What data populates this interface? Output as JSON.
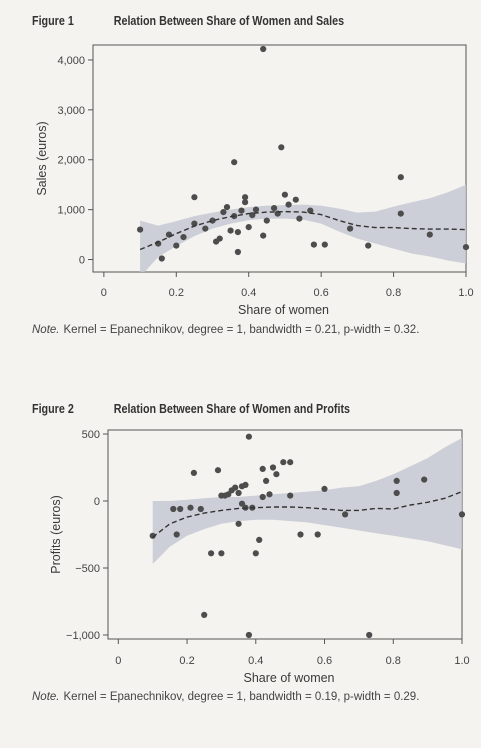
{
  "figures": [
    {
      "label": "Figure 1",
      "title": "Relation Between Share of Women and Sales",
      "note_lead": "Note.",
      "note_text": "Kernel = Epanechnikov, degree = 1, bandwidth = 0.21, p-width = 0.32."
    },
    {
      "label": "Figure 2",
      "title": "Relation Between Share of Women and Profits",
      "note_lead": "Note.",
      "note_text": "Kernel = Epanechnikov, degree = 1, bandwidth = 0.19, p-width = 0.29."
    }
  ],
  "chart_data": [
    {
      "type": "scatter",
      "xlabel": "Share of women",
      "ylabel": "Sales (euros)",
      "xlim": [
        -0.03,
        1.0
      ],
      "ylim": [
        -250,
        4300
      ],
      "xticks": [
        0,
        0.2,
        0.4,
        0.6,
        0.8,
        1.0
      ],
      "xtick_labels": [
        "0",
        "0.2",
        "0.4",
        "0.6",
        "0.8",
        "1.0"
      ],
      "yticks": [
        0,
        1000,
        2000,
        3000,
        4000
      ],
      "ytick_labels": [
        "0",
        "1,000",
        "2,000",
        "3,000",
        "4,000"
      ],
      "grid": false,
      "colors": {
        "points": "#4d4d4d",
        "band": "#c4c8d2",
        "fit": "#333333"
      },
      "points": [
        [
          0.1,
          600
        ],
        [
          0.15,
          320
        ],
        [
          0.16,
          20
        ],
        [
          0.18,
          500
        ],
        [
          0.2,
          280
        ],
        [
          0.22,
          450
        ],
        [
          0.25,
          1250
        ],
        [
          0.25,
          720
        ],
        [
          0.28,
          620
        ],
        [
          0.3,
          780
        ],
        [
          0.31,
          360
        ],
        [
          0.32,
          420
        ],
        [
          0.33,
          950
        ],
        [
          0.34,
          1050
        ],
        [
          0.35,
          580
        ],
        [
          0.36,
          1950
        ],
        [
          0.36,
          870
        ],
        [
          0.37,
          550
        ],
        [
          0.37,
          150
        ],
        [
          0.38,
          980
        ],
        [
          0.39,
          1250
        ],
        [
          0.39,
          1150
        ],
        [
          0.4,
          650
        ],
        [
          0.41,
          890
        ],
        [
          0.42,
          1000
        ],
        [
          0.44,
          4220
        ],
        [
          0.44,
          480
        ],
        [
          0.45,
          780
        ],
        [
          0.47,
          1030
        ],
        [
          0.48,
          920
        ],
        [
          0.49,
          2250
        ],
        [
          0.5,
          1300
        ],
        [
          0.51,
          1100
        ],
        [
          0.53,
          1200
        ],
        [
          0.54,
          820
        ],
        [
          0.57,
          980
        ],
        [
          0.58,
          300
        ],
        [
          0.61,
          300
        ],
        [
          0.68,
          620
        ],
        [
          0.73,
          280
        ],
        [
          0.82,
          1650
        ],
        [
          0.82,
          920
        ],
        [
          0.9,
          500
        ],
        [
          1.0,
          250
        ]
      ],
      "fit_line": [
        [
          0.1,
          200
        ],
        [
          0.15,
          350
        ],
        [
          0.2,
          520
        ],
        [
          0.25,
          670
        ],
        [
          0.3,
          780
        ],
        [
          0.35,
          860
        ],
        [
          0.4,
          920
        ],
        [
          0.45,
          950
        ],
        [
          0.5,
          960
        ],
        [
          0.55,
          950
        ],
        [
          0.6,
          900
        ],
        [
          0.65,
          780
        ],
        [
          0.7,
          680
        ],
        [
          0.75,
          640
        ],
        [
          0.8,
          640
        ],
        [
          0.85,
          620
        ],
        [
          0.9,
          610
        ],
        [
          0.95,
          610
        ],
        [
          1.0,
          600
        ]
      ],
      "ci_band": [
        [
          0.1,
          -350,
          780
        ],
        [
          0.15,
          50,
          680
        ],
        [
          0.2,
          270,
          770
        ],
        [
          0.25,
          470,
          870
        ],
        [
          0.3,
          620,
          940
        ],
        [
          0.35,
          720,
          1000
        ],
        [
          0.4,
          790,
          1050
        ],
        [
          0.45,
          820,
          1080
        ],
        [
          0.5,
          820,
          1090
        ],
        [
          0.55,
          800,
          1100
        ],
        [
          0.6,
          720,
          1080
        ],
        [
          0.65,
          560,
          1020
        ],
        [
          0.7,
          420,
          940
        ],
        [
          0.75,
          320,
          960
        ],
        [
          0.8,
          220,
          1060
        ],
        [
          0.85,
          120,
          1150
        ],
        [
          0.9,
          60,
          1230
        ],
        [
          0.95,
          -20,
          1350
        ],
        [
          1.0,
          -80,
          1500
        ]
      ]
    },
    {
      "type": "scatter",
      "xlabel": "Share of women",
      "ylabel": "Profits (euros)",
      "xlim": [
        -0.03,
        1.0
      ],
      "ylim": [
        -1030,
        530
      ],
      "xticks": [
        0,
        0.2,
        0.4,
        0.6,
        0.8,
        1.0
      ],
      "xtick_labels": [
        "0",
        "0.2",
        "0.4",
        "0.6",
        "0.8",
        "1.0"
      ],
      "yticks": [
        -1000,
        -500,
        0,
        500
      ],
      "ytick_labels": [
        "−1,000",
        "−500",
        "0",
        "500"
      ],
      "grid": false,
      "colors": {
        "points": "#4d4d4d",
        "band": "#c4c8d2",
        "fit": "#333333"
      },
      "points": [
        [
          0.1,
          -260
        ],
        [
          0.16,
          -60
        ],
        [
          0.17,
          -250
        ],
        [
          0.18,
          -60
        ],
        [
          0.21,
          -50
        ],
        [
          0.22,
          210
        ],
        [
          0.24,
          -60
        ],
        [
          0.25,
          -850
        ],
        [
          0.27,
          -390
        ],
        [
          0.29,
          230
        ],
        [
          0.3,
          40
        ],
        [
          0.3,
          -390
        ],
        [
          0.31,
          40
        ],
        [
          0.32,
          50
        ],
        [
          0.33,
          80
        ],
        [
          0.34,
          100
        ],
        [
          0.35,
          -170
        ],
        [
          0.35,
          60
        ],
        [
          0.36,
          -20
        ],
        [
          0.36,
          110
        ],
        [
          0.37,
          120
        ],
        [
          0.37,
          -50
        ],
        [
          0.38,
          480
        ],
        [
          0.38,
          -1000
        ],
        [
          0.39,
          -50
        ],
        [
          0.4,
          -390
        ],
        [
          0.41,
          -290
        ],
        [
          0.42,
          30
        ],
        [
          0.42,
          240
        ],
        [
          0.43,
          150
        ],
        [
          0.44,
          50
        ],
        [
          0.45,
          250
        ],
        [
          0.46,
          200
        ],
        [
          0.48,
          290
        ],
        [
          0.5,
          40
        ],
        [
          0.5,
          290
        ],
        [
          0.53,
          -250
        ],
        [
          0.58,
          -250
        ],
        [
          0.6,
          90
        ],
        [
          0.66,
          -100
        ],
        [
          0.73,
          -1000
        ],
        [
          0.81,
          150
        ],
        [
          0.81,
          60
        ],
        [
          0.89,
          160
        ],
        [
          1.0,
          -100
        ]
      ],
      "fit_line": [
        [
          0.1,
          -270
        ],
        [
          0.15,
          -170
        ],
        [
          0.2,
          -120
        ],
        [
          0.25,
          -90
        ],
        [
          0.3,
          -70
        ],
        [
          0.35,
          -55
        ],
        [
          0.4,
          -50
        ],
        [
          0.45,
          -45
        ],
        [
          0.5,
          -45
        ],
        [
          0.55,
          -50
        ],
        [
          0.6,
          -60
        ],
        [
          0.65,
          -70
        ],
        [
          0.7,
          -70
        ],
        [
          0.75,
          -55
        ],
        [
          0.8,
          -60
        ],
        [
          0.85,
          -30
        ],
        [
          0.9,
          -10
        ],
        [
          0.95,
          20
        ],
        [
          1.0,
          70
        ]
      ],
      "ci_band": [
        [
          0.1,
          -470,
          0
        ],
        [
          0.15,
          -340,
          0
        ],
        [
          0.2,
          -260,
          10
        ],
        [
          0.25,
          -210,
          20
        ],
        [
          0.3,
          -170,
          30
        ],
        [
          0.35,
          -150,
          30
        ],
        [
          0.4,
          -140,
          40
        ],
        [
          0.45,
          -140,
          50
        ],
        [
          0.5,
          -150,
          60
        ],
        [
          0.55,
          -160,
          70
        ],
        [
          0.6,
          -180,
          80
        ],
        [
          0.65,
          -200,
          100
        ],
        [
          0.7,
          -220,
          110
        ],
        [
          0.75,
          -240,
          150
        ],
        [
          0.8,
          -260,
          200
        ],
        [
          0.85,
          -280,
          260
        ],
        [
          0.9,
          -300,
          320
        ],
        [
          0.95,
          -330,
          400
        ],
        [
          1.0,
          -360,
          470
        ]
      ]
    }
  ]
}
